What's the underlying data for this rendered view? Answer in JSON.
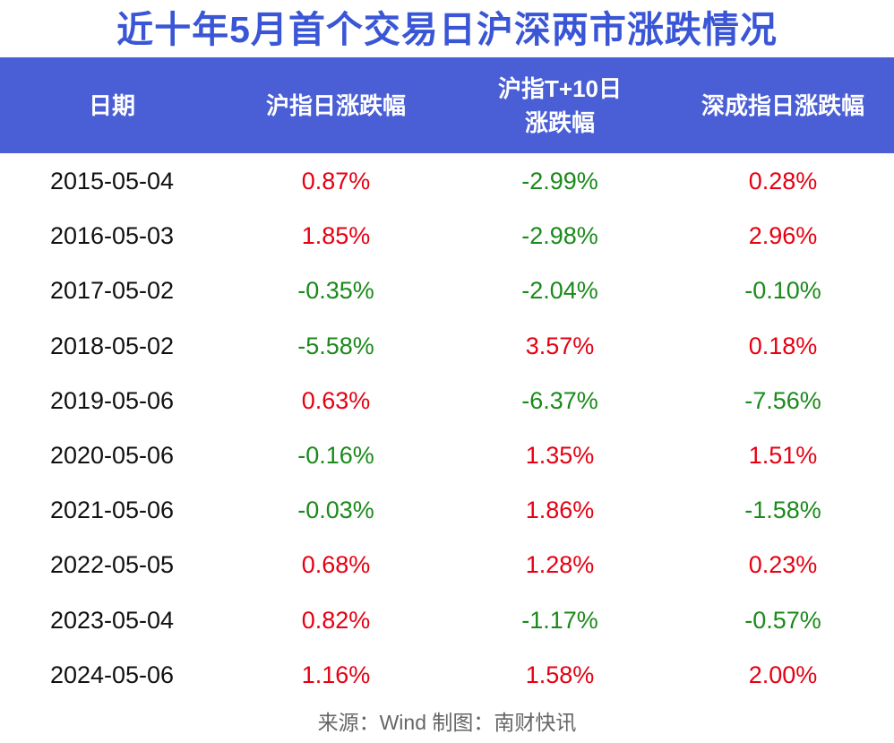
{
  "title": "近十年5月首个交易日沪深两市涨跌情况",
  "source": "来源：Wind 制图：南财快讯",
  "colors": {
    "title": "#3a56d6",
    "header_bg": "#4a5fd6",
    "header_text": "#ffffff",
    "up": "#e60012",
    "down": "#1a8a1a",
    "date": "#111111",
    "source": "#666666"
  },
  "chart_data": {
    "type": "table",
    "title": "近十年5月首个交易日沪深两市涨跌情况",
    "columns": [
      "日期",
      "沪指日涨跌幅",
      "沪指T+10日\n涨跌幅",
      "深成指日涨跌幅"
    ],
    "rows": [
      [
        "2015-05-04",
        "0.87%",
        "-2.99%",
        "0.28%"
      ],
      [
        "2016-05-03",
        "1.85%",
        "-2.98%",
        "2.96%"
      ],
      [
        "2017-05-02",
        "-0.35%",
        "-2.04%",
        "-0.10%"
      ],
      [
        "2018-05-02",
        "-5.58%",
        "3.57%",
        "0.18%"
      ],
      [
        "2019-05-06",
        "0.63%",
        "-6.37%",
        "-7.56%"
      ],
      [
        "2020-05-06",
        "-0.16%",
        "1.35%",
        "1.51%"
      ],
      [
        "2021-05-06",
        "-0.03%",
        "1.86%",
        "-1.58%"
      ],
      [
        "2022-05-05",
        "0.68%",
        "1.28%",
        "0.23%"
      ],
      [
        "2023-05-04",
        "0.82%",
        "-1.17%",
        "-0.57%"
      ],
      [
        "2024-05-06",
        "1.16%",
        "1.58%",
        "2.00%"
      ]
    ],
    "value_color_rule": {
      "positive": "#e60012",
      "negative": "#1a8a1a"
    }
  }
}
